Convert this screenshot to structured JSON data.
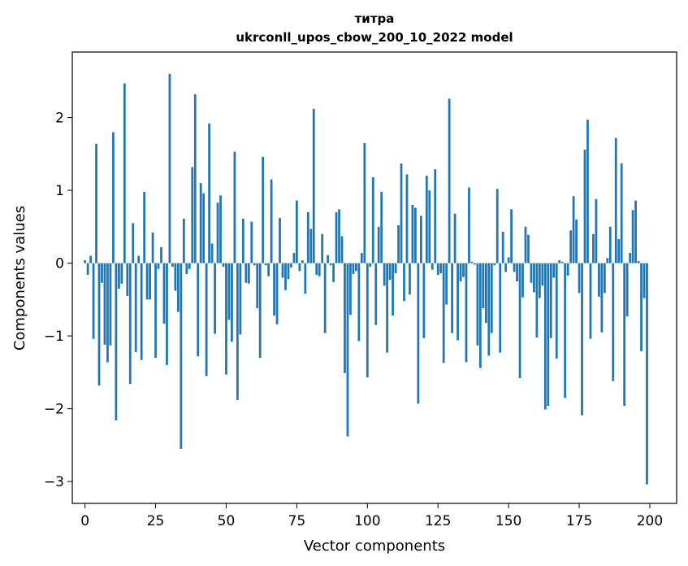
{
  "chart_data": {
    "type": "bar",
    "title": "титра",
    "subtitle": "ukrconll_upos_cbow_200_10_2022 model",
    "xlabel": "Vector components",
    "ylabel": "Components values",
    "xlim": [
      -4.5,
      209.5
    ],
    "ylim": [
      -3.3,
      2.9
    ],
    "xticks": [
      0,
      25,
      50,
      75,
      100,
      125,
      150,
      175,
      200
    ],
    "xtick_labels": [
      "0",
      "25",
      "50",
      "75",
      "100",
      "125",
      "150",
      "175",
      "200"
    ],
    "yticks": [
      -3,
      -2,
      -1,
      0,
      1,
      2
    ],
    "ytick_labels": [
      "−3",
      "−2",
      "−1",
      "0",
      "1",
      "2"
    ],
    "grid": false,
    "color": "#1f77b4",
    "x": [
      0,
      1,
      2,
      3,
      4,
      5,
      6,
      7,
      8,
      9,
      10,
      11,
      12,
      13,
      14,
      15,
      16,
      17,
      18,
      19,
      20,
      21,
      22,
      23,
      24,
      25,
      26,
      27,
      28,
      29,
      30,
      31,
      32,
      33,
      34,
      35,
      36,
      37,
      38,
      39,
      40,
      41,
      42,
      43,
      44,
      45,
      46,
      47,
      48,
      49,
      50,
      51,
      52,
      53,
      54,
      55,
      56,
      57,
      58,
      59,
      60,
      61,
      62,
      63,
      64,
      65,
      66,
      67,
      68,
      69,
      70,
      71,
      72,
      73,
      74,
      75,
      76,
      77,
      78,
      79,
      80,
      81,
      82,
      83,
      84,
      85,
      86,
      87,
      88,
      89,
      90,
      91,
      92,
      93,
      94,
      95,
      96,
      97,
      98,
      99,
      100,
      101,
      102,
      103,
      104,
      105,
      106,
      107,
      108,
      109,
      110,
      111,
      112,
      113,
      114,
      115,
      116,
      117,
      118,
      119,
      120,
      121,
      122,
      123,
      124,
      125,
      126,
      127,
      128,
      129,
      130,
      131,
      132,
      133,
      134,
      135,
      136,
      137,
      138,
      139,
      140,
      141,
      142,
      143,
      144,
      145,
      146,
      147,
      148,
      149,
      150,
      151,
      152,
      153,
      154,
      155,
      156,
      157,
      158,
      159,
      160,
      161,
      162,
      163,
      164,
      165,
      166,
      167,
      168,
      169,
      170,
      171,
      172,
      173,
      174,
      175,
      176,
      177,
      178,
      179,
      180,
      181,
      182,
      183,
      184,
      185,
      186,
      187,
      188,
      189,
      190,
      191,
      192,
      193,
      194,
      195,
      196,
      197,
      198,
      199
    ],
    "values": [
      0.04,
      -0.16,
      0.1,
      -1.04,
      1.64,
      -1.68,
      -0.27,
      -1.12,
      -1.36,
      -1.13,
      1.8,
      -2.16,
      -0.35,
      -0.28,
      2.47,
      -0.45,
      -1.66,
      0.55,
      -1.22,
      0.1,
      -1.33,
      0.98,
      -0.5,
      -0.5,
      0.42,
      -1.3,
      -0.08,
      0.22,
      -0.83,
      -1.4,
      2.6,
      -0.05,
      -0.38,
      -0.67,
      -2.55,
      0.61,
      -0.15,
      -0.08,
      1.32,
      2.32,
      -1.28,
      1.1,
      0.96,
      -1.55,
      1.92,
      0.27,
      -0.97,
      0.83,
      0.93,
      -0.05,
      -1.53,
      -0.78,
      -1.08,
      1.53,
      -1.88,
      -0.98,
      0.61,
      -0.27,
      -0.28,
      0.57,
      -0.03,
      -0.62,
      -1.3,
      1.46,
      -0.03,
      -0.18,
      1.15,
      -0.72,
      -0.84,
      0.62,
      -0.2,
      -0.37,
      -0.22,
      -0.06,
      0.14,
      0.86,
      -0.11,
      0.04,
      -0.42,
      0.7,
      0.47,
      2.12,
      -0.16,
      -0.18,
      0.4,
      -0.96,
      0.11,
      -0.03,
      -0.26,
      0.7,
      0.74,
      0.37,
      -1.51,
      -2.38,
      -0.71,
      -0.15,
      -0.11,
      -1.07,
      0.14,
      1.65,
      -1.57,
      -0.05,
      1.18,
      -0.85,
      0.5,
      0.98,
      -0.31,
      -1.23,
      -0.23,
      -0.72,
      -0.14,
      0.52,
      1.37,
      -0.52,
      1.22,
      -0.43,
      0.8,
      0.76,
      -1.93,
      0.65,
      -1.03,
      1.2,
      1.0,
      -0.09,
      1.29,
      -0.16,
      -0.14,
      -1.37,
      -0.57,
      2.26,
      -0.96,
      0.68,
      -1.06,
      -0.25,
      -0.19,
      -1.36,
      1.04,
      0.02,
      -0.02,
      -1.13,
      -1.44,
      -0.62,
      -0.82,
      -1.27,
      -0.96,
      -0.03,
      1.02,
      -1.23,
      0.43,
      -0.12,
      0.08,
      0.74,
      -0.12,
      -0.25,
      -1.58,
      -0.47,
      0.5,
      0.39,
      -0.27,
      -0.4,
      -1.02,
      -0.48,
      -0.31,
      -2.01,
      -1.96,
      -1.03,
      -0.2,
      -1.31,
      0.04,
      0.02,
      -1.85,
      -0.17,
      0.45,
      0.92,
      0.6,
      -0.41,
      -2.09,
      1.56,
      1.97,
      -1.04,
      0.4,
      0.88,
      -0.46,
      -0.95,
      -0.41,
      0.07,
      0.5,
      -1.62,
      1.72,
      0.33,
      1.37,
      -1.96,
      -0.73,
      0.14,
      0.73,
      0.86,
      0.03,
      -1.21,
      -0.48,
      -3.04
    ]
  }
}
